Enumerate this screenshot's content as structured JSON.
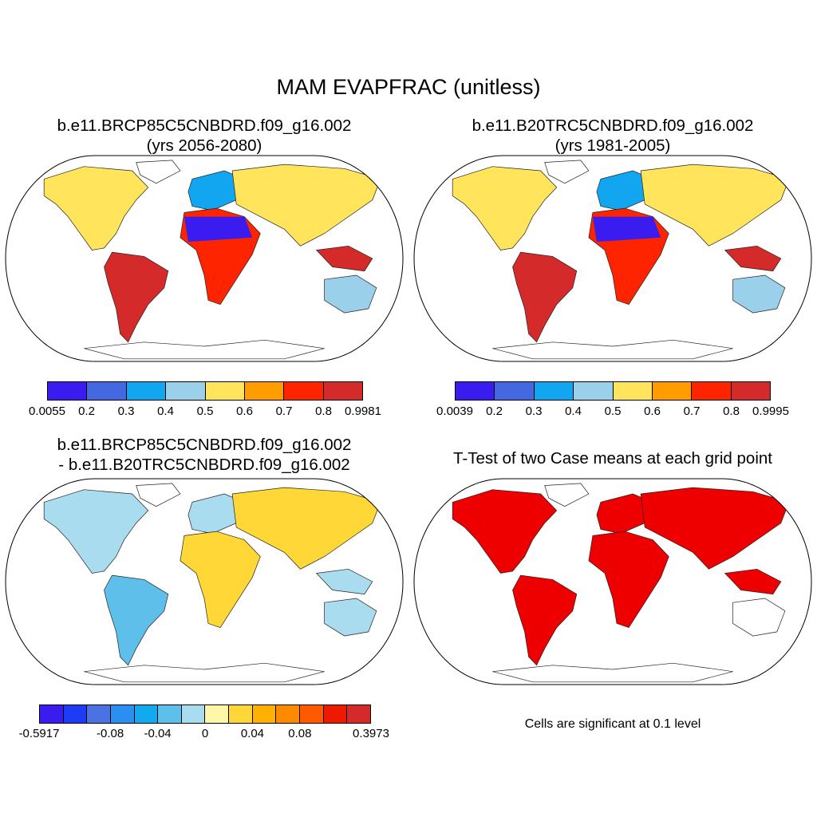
{
  "main_title": "MAM EVAPFRAC (unitless)",
  "panels": [
    {
      "title_line1": "b.e11.BRCP85C5CNBDRD.f09_g16.002",
      "title_line2": "(yrs 2056-2080)",
      "colorbar": {
        "colors": [
          "#3b1cf0",
          "#4468e0",
          "#12a6f0",
          "#9bd0ea",
          "#ffe45c",
          "#ff9c00",
          "#ff2400",
          "#d42a2a"
        ],
        "labels": [
          "0.0055",
          "0.2",
          "0.3",
          "0.4",
          "0.5",
          "0.6",
          "0.7",
          "0.8",
          "0.9981"
        ]
      }
    },
    {
      "title_line1": "b.e11.B20TRC5CNBDRD.f09_g16.002",
      "title_line2": "(yrs 1981-2005)",
      "colorbar": {
        "colors": [
          "#3b1cf0",
          "#4468e0",
          "#12a6f0",
          "#9bd0ea",
          "#ffe45c",
          "#ff9c00",
          "#ff2400",
          "#d42a2a"
        ],
        "labels": [
          "0.0039",
          "0.2",
          "0.3",
          "0.4",
          "0.5",
          "0.6",
          "0.7",
          "0.8",
          "0.9995"
        ]
      }
    },
    {
      "title_line1": "b.e11.BRCP85C5CNBDRD.f09_g16.002",
      "title_line2": "- b.e11.B20TRC5CNBDRD.f09_g16.002",
      "colorbar": {
        "colors": [
          "#3b1cf0",
          "#1e3cf5",
          "#4a72e2",
          "#2c8ef0",
          "#11aaee",
          "#5ec0ea",
          "#a8dcee",
          "#fff6aa",
          "#ffd838",
          "#ffb000",
          "#ff8a00",
          "#ff5a00",
          "#ee1a00",
          "#d42a2a"
        ],
        "labels": [
          "-0.5917",
          "-0.08",
          "-0.04",
          "0",
          "0.04",
          "0.08",
          "0.3973"
        ]
      }
    },
    {
      "title_line1": "T-Test of two Case means at each grid point",
      "note": "Cells are significant at 0.1 level"
    }
  ]
}
